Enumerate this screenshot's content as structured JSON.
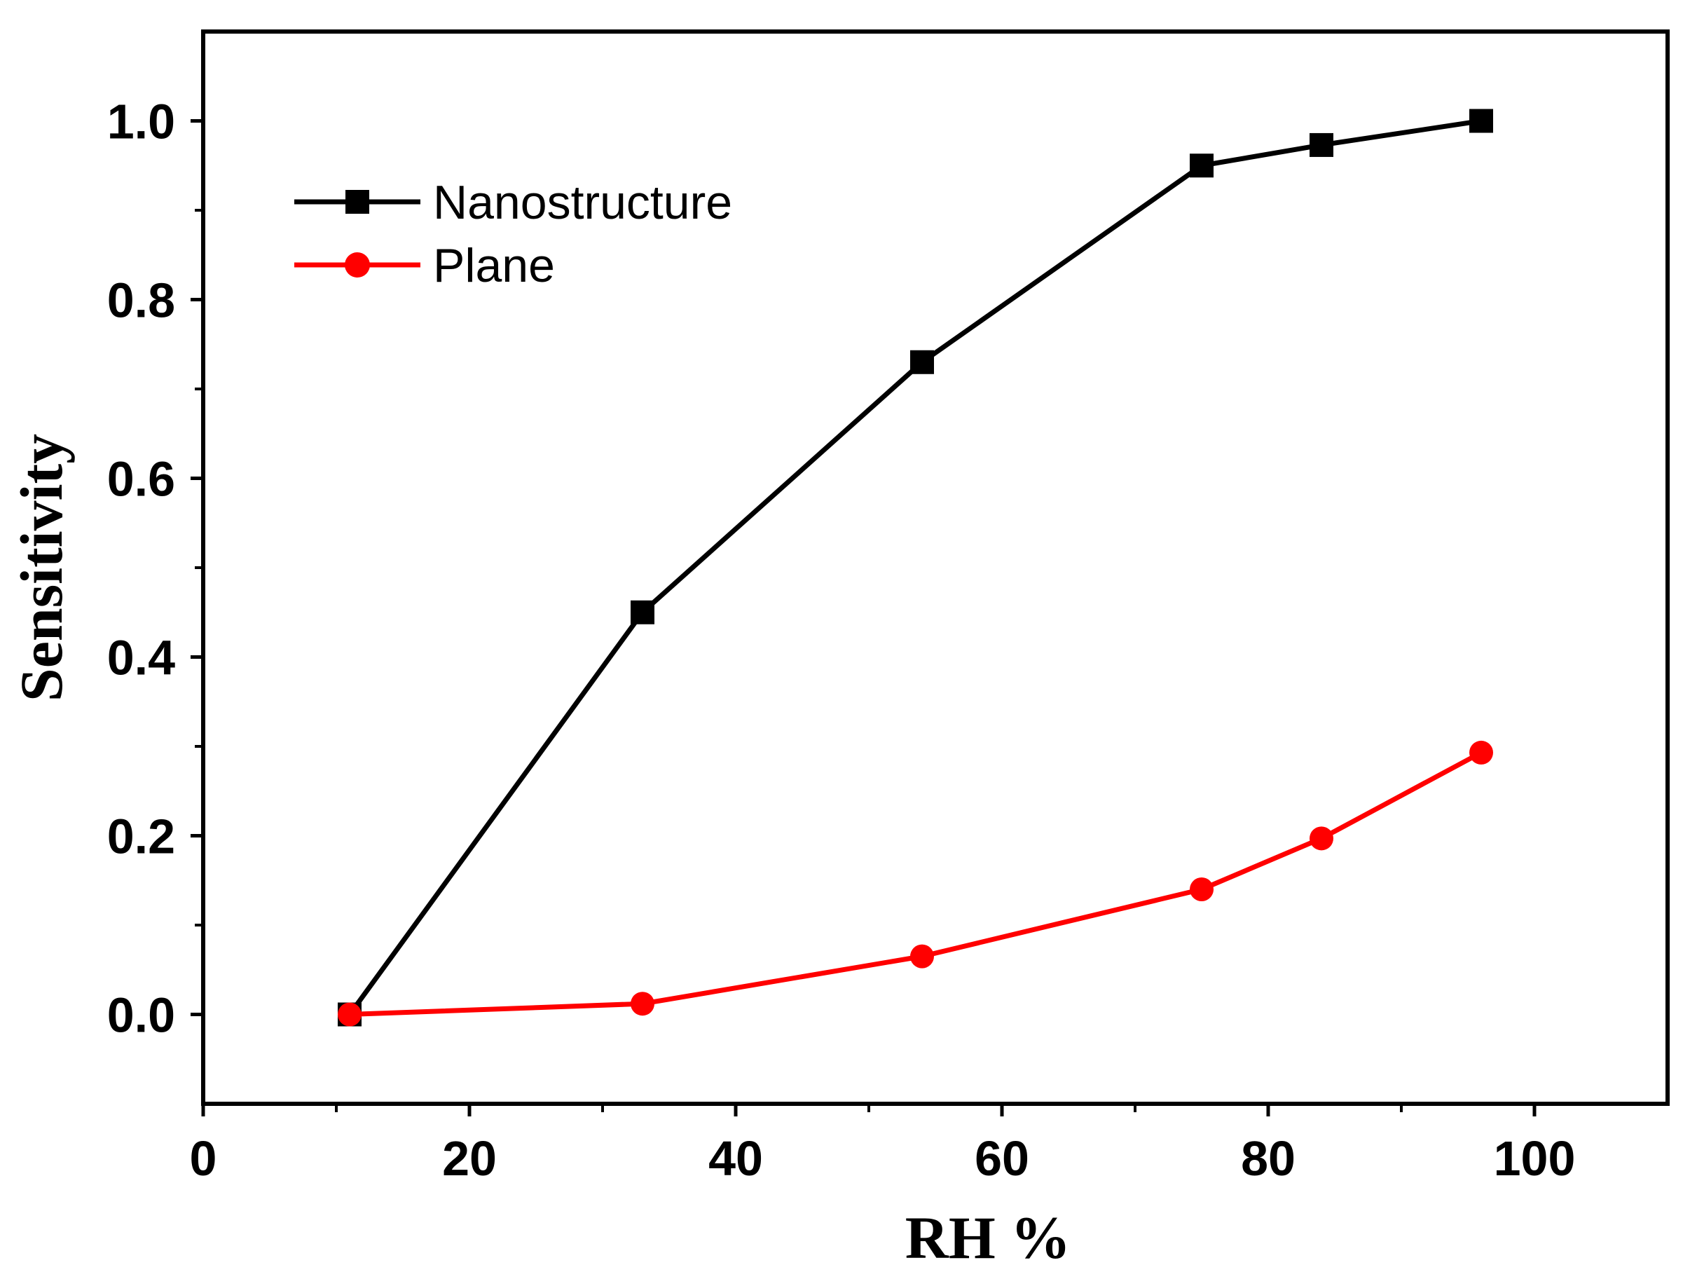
{
  "chart_data": {
    "type": "line",
    "title": "",
    "xlabel": "RH %",
    "ylabel": "Sensitivity",
    "xlim": [
      0,
      110
    ],
    "ylim": [
      -0.1,
      1.1
    ],
    "xticks": [
      0,
      20,
      40,
      60,
      80,
      100
    ],
    "xtick_labels": [
      "0",
      "20",
      "40",
      "60",
      "80",
      "100"
    ],
    "yticks": [
      0.0,
      0.2,
      0.4,
      0.6,
      0.8,
      1.0
    ],
    "ytick_labels": [
      "0.0",
      "0.2",
      "0.4",
      "0.6",
      "0.8",
      "1.0"
    ],
    "grid": false,
    "legend_position": "top-left",
    "x": [
      11,
      33,
      54,
      75,
      84,
      96
    ],
    "series": [
      {
        "name": "Nanostructure",
        "color": "#000000",
        "marker": "square",
        "values": [
          0.0,
          0.45,
          0.73,
          0.95,
          0.973,
          1.0
        ]
      },
      {
        "name": "Plane",
        "color": "#ff0000",
        "marker": "circle",
        "values": [
          0.0,
          0.012,
          0.065,
          0.14,
          0.197,
          0.293
        ]
      }
    ]
  }
}
